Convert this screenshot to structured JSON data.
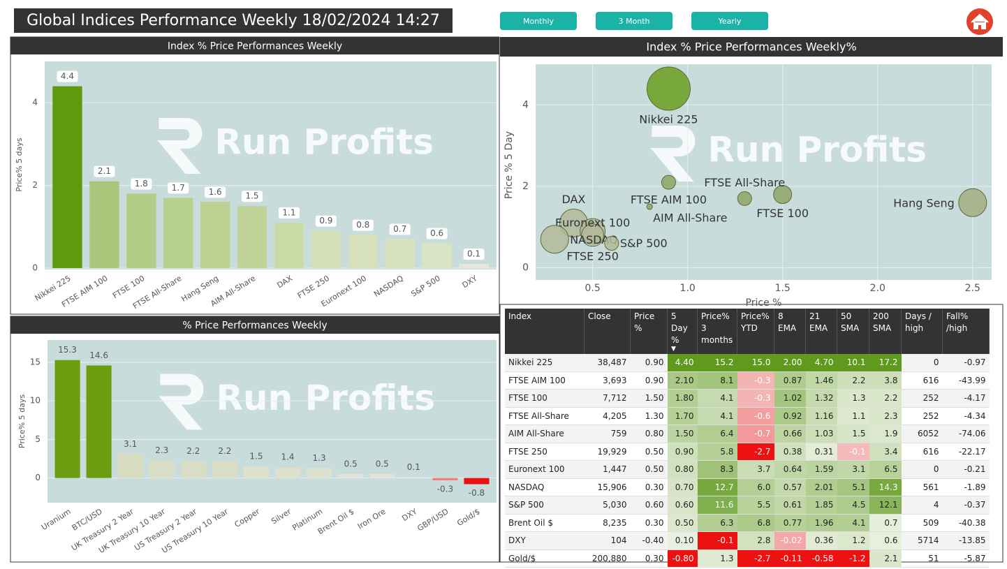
{
  "header": {
    "title": "Global Indices Performance Weekly 18/02/2024 14:27",
    "buttons": [
      "Monthly",
      "3 Month",
      "Yearly"
    ],
    "watermark": "Run Profits"
  },
  "chart_data": [
    {
      "type": "bar",
      "title": "Index % Price Performances Weekly",
      "ylabel": "Price% 5 days",
      "categories": [
        "Nikkei 225",
        "FTSE AIM 100",
        "FTSE 100",
        "FTSE All-Share",
        "Hang Seng",
        "AIM All-Share",
        "DAX",
        "FTSE 250",
        "Euronext 100",
        "NASDAQ",
        "S&P 500",
        "DXY"
      ],
      "values": [
        4.4,
        2.1,
        1.8,
        1.7,
        1.6,
        1.5,
        1.1,
        0.9,
        0.8,
        0.7,
        0.6,
        0.1
      ],
      "colors": [
        "#5e9a0d",
        "#a9c67a",
        "#b3cc86",
        "#b8d08d",
        "#bcd292",
        "#c0d497",
        "#cbdba8",
        "#d3e0b6",
        "#d6e1bb",
        "#d8e2be",
        "#dae3c3",
        "#e4e6df"
      ],
      "ylim": [
        0,
        5
      ],
      "yticks": [
        0,
        2,
        4
      ],
      "grid": true,
      "value_label_box": true
    },
    {
      "type": "scatter",
      "title": "Index % Price Performances Weekly%",
      "xlabel": "Price %",
      "ylabel": "Price % 5 Day",
      "labels": [
        "Nikkei 225",
        "FTSE AIM 100",
        "FTSE 100",
        "FTSE All-Share",
        "Hang Seng",
        "AIM All-Share",
        "DAX",
        "FTSE 250",
        "Euronext 100",
        "NASDAQ",
        "S&P 500"
      ],
      "x": [
        0.9,
        0.9,
        1.5,
        1.3,
        2.5,
        0.8,
        0.4,
        0.5,
        0.5,
        0.3,
        0.6
      ],
      "y": [
        4.4,
        2.1,
        1.8,
        1.7,
        1.6,
        1.5,
        1.1,
        0.9,
        0.8,
        0.7,
        0.6
      ],
      "sizes": [
        31,
        10,
        13,
        10,
        20,
        4,
        20,
        18,
        16,
        20,
        10
      ],
      "colors": [
        "#6a9e1e",
        "#8fa463",
        "#8fa463",
        "#8fa463",
        "#a3ae80",
        "#8fa463",
        "#b3b99a",
        "#b3b99a",
        "#b3b99a",
        "#b3b99a",
        "#b3b99a"
      ],
      "xlim": [
        0.2,
        2.6
      ],
      "xticks": [
        0.5,
        {
          "value": 1,
          "label": "1.0"
        },
        1.5,
        {
          "value": 2,
          "label": "2.0"
        },
        2.5
      ],
      "ylim": [
        -0.3,
        5
      ],
      "yticks": [
        0,
        2,
        4
      ],
      "grid": true
    },
    {
      "type": "bar",
      "title": "% Price Performances Weekly",
      "ylabel": "Price% 5 days",
      "categories": [
        "Uranium",
        "BTC/USD",
        "UK Treasury 2 Year",
        "UK Treasury 10 Year",
        "US Treasury 2 Year",
        "US Treasury 10 Year",
        "Copper",
        "Silver",
        "Platinum",
        "Brent Oil $",
        "Iron Ore",
        "DXY",
        "GBP/USD",
        "Gold/$"
      ],
      "values": [
        15.3,
        14.6,
        3.1,
        2.3,
        2.2,
        2.2,
        1.5,
        1.4,
        1.3,
        0.5,
        0.5,
        0.1,
        -0.3,
        -0.8
      ],
      "colors": [
        "#6a9e10",
        "#6a9e10",
        "#d7dcc0",
        "#d9ddc5",
        "#d9ddc5",
        "#d9ddc5",
        "#dde0cc",
        "#dde0cc",
        "#dde0cc",
        "#e3e4d9",
        "#e3e4d9",
        "#e6e6e0",
        "#f08080",
        "#e81010"
      ],
      "ylim": [
        -3.2,
        17.9
      ],
      "yticks": [
        0,
        5,
        10,
        15
      ],
      "grid": true,
      "value_label_box": false
    }
  ],
  "table": {
    "positive_color": "#5f9a1e",
    "negative_color": "#ee1111",
    "columns": [
      "Index",
      "Close",
      "Price %",
      "5 Day %",
      "Price% 3 months",
      "Price% YTD",
      "8 EMA",
      "21 EMA",
      "50 SMA",
      "200 SMA",
      "Days / high",
      "Fall% /high"
    ],
    "rows": [
      [
        "Nikkei 225",
        "38,487",
        "0.90",
        "4.40",
        "15.2",
        "15.0",
        "2.00",
        "4.70",
        "10.1",
        "17.2",
        "0",
        "-0.97"
      ],
      [
        "FTSE AIM 100",
        "3,693",
        "0.90",
        "2.10",
        "8.1",
        "-0.3",
        "0.87",
        "1.46",
        "2.2",
        "3.8",
        "616",
        "-43.99"
      ],
      [
        "FTSE 100",
        "7,712",
        "1.50",
        "1.80",
        "4.1",
        "-0.3",
        "1.02",
        "1.32",
        "1.3",
        "2.2",
        "252",
        "-4.17"
      ],
      [
        "FTSE All-Share",
        "4,205",
        "1.30",
        "1.70",
        "4.1",
        "-0.6",
        "0.92",
        "1.16",
        "1.1",
        "2.3",
        "252",
        "-4.34"
      ],
      [
        "AIM All-Share",
        "759",
        "0.80",
        "1.50",
        "6.4",
        "-0.7",
        "0.66",
        "1.03",
        "1.5",
        "1.9",
        "6052",
        "-74.06"
      ],
      [
        "FTSE 250",
        "19,929",
        "0.50",
        "0.90",
        "5.8",
        "-2.7",
        "0.38",
        "0.31",
        "-0.1",
        "3.4",
        "616",
        "-22.17"
      ],
      [
        "Euronext 100",
        "1,447",
        "0.50",
        "0.80",
        "8.3",
        "3.7",
        "0.64",
        "1.59",
        "3.1",
        "6.5",
        "0",
        "-0.21"
      ],
      [
        "NASDAQ",
        "15,906",
        "0.30",
        "0.70",
        "12.7",
        "6.0",
        "0.57",
        "2.01",
        "5.1",
        "14.3",
        "561",
        "-1.89"
      ],
      [
        "S&P 500",
        "5,030",
        "0.60",
        "0.60",
        "11.6",
        "5.5",
        "0.61",
        "1.85",
        "4.5",
        "12.1",
        "4",
        "-0.37"
      ],
      [
        "Brent Oil $",
        "8,235",
        "0.30",
        "0.50",
        "6.3",
        "6.8",
        "0.77",
        "1.96",
        "4.1",
        "0.7",
        "509",
        "-40.38"
      ],
      [
        "DXY",
        "104",
        "-0.40",
        "0.10",
        "-0.1",
        "2.8",
        "-0.02",
        "0.36",
        "1.2",
        "0.6",
        "5714",
        "-13.85"
      ],
      [
        "Gold/$",
        "200,880",
        "0.30",
        "-0.80",
        "1.3",
        "-2.7",
        "-0.11",
        "-0.58",
        "-1.2",
        "2.1",
        "51",
        "-5.87"
      ]
    ]
  }
}
